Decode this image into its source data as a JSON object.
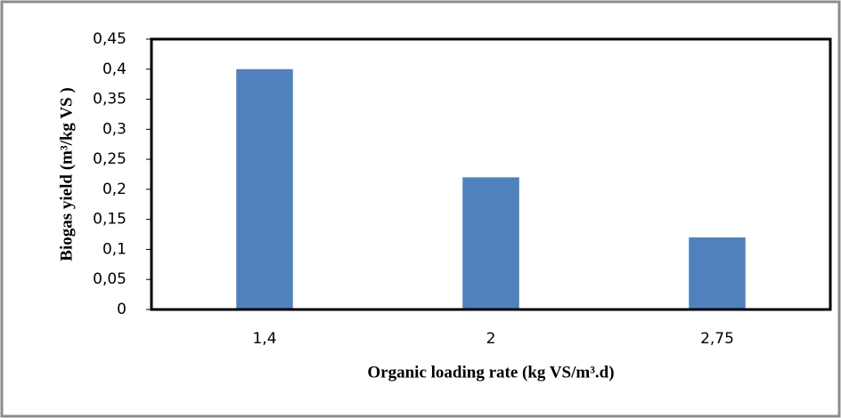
{
  "chart_data": {
    "type": "bar",
    "x_label": "Organic loading rate (kg VS/m³.d)",
    "y_label": "Biogas yield (m³/kg VS )",
    "categories": [
      "1,4",
      "2",
      "2,75"
    ],
    "values": [
      0.4,
      0.22,
      0.12
    ],
    "color": "#4f81bd",
    "ylim": [
      0,
      0.45
    ],
    "yticks": [
      0,
      {
        "value": 0.05,
        "label": "0,05"
      },
      {
        "value": 0.1,
        "label": "0,1"
      },
      {
        "value": 0.15,
        "label": "0,15"
      },
      {
        "value": 0.2,
        "label": "0,2"
      },
      {
        "value": 0.25,
        "label": "0,25"
      },
      {
        "value": 0.3,
        "label": "0,3"
      },
      {
        "value": 0.35,
        "label": "0,35"
      },
      {
        "value": 0.4,
        "label": "0,4"
      },
      {
        "value": 0.45,
        "label": "0,45"
      }
    ],
    "grid": false
  }
}
